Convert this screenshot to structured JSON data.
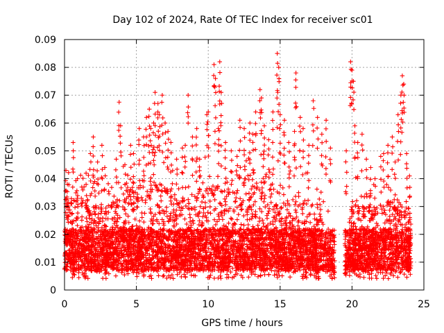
{
  "chart_data": {
    "type": "scatter",
    "title": "Day 102 of 2024, Rate Of TEC Index for receiver sc01",
    "xlabel": "GPS time / hours",
    "ylabel": "ROTI / TECUs",
    "xlim": [
      0,
      25
    ],
    "ylim": [
      0,
      0.09
    ],
    "xticks": [
      0,
      5,
      10,
      15,
      20,
      25
    ],
    "yticks": [
      0,
      0.01,
      0.02,
      0.03,
      0.04,
      0.05,
      0.06,
      0.07,
      0.08,
      0.09
    ],
    "xtick_labels": [
      "0",
      "5",
      "10",
      "15",
      "20",
      "25"
    ],
    "ytick_labels": [
      "0",
      "0.01",
      "0.02",
      "0.03",
      "0.04",
      "0.05",
      "0.06",
      "0.07",
      "0.08",
      "0.09"
    ],
    "grid": true,
    "marker": "+",
    "color": "#ff0000",
    "data_gap_hours": [
      18.8,
      19.5
    ],
    "series": [
      {
        "name": "sc01",
        "points": [
          [
            0.1,
            0.043
          ],
          [
            0.2,
            0.038
          ],
          [
            0.5,
            0.031
          ],
          [
            0.6,
            0.053
          ],
          [
            0.9,
            0.04
          ],
          [
            1.2,
            0.037
          ],
          [
            1.5,
            0.042
          ],
          [
            1.8,
            0.049
          ],
          [
            2.0,
            0.055
          ],
          [
            2.1,
            0.039
          ],
          [
            2.3,
            0.046
          ],
          [
            2.6,
            0.052
          ],
          [
            2.8,
            0.044
          ],
          [
            3.3,
            0.03
          ],
          [
            3.6,
            0.047
          ],
          [
            3.8,
            0.0675
          ],
          [
            3.9,
            0.059
          ],
          [
            4.2,
            0.045
          ],
          [
            4.6,
            0.052
          ],
          [
            4.8,
            0.049
          ],
          [
            5.2,
            0.058
          ],
          [
            5.5,
            0.055
          ],
          [
            5.7,
            0.062
          ],
          [
            5.9,
            0.065
          ],
          [
            6.0,
            0.058
          ],
          [
            6.2,
            0.06
          ],
          [
            6.3,
            0.071
          ],
          [
            6.5,
            0.067
          ],
          [
            6.6,
            0.063
          ],
          [
            6.8,
            0.07
          ],
          [
            7.0,
            0.06
          ],
          [
            7.2,
            0.057
          ],
          [
            7.4,
            0.053
          ],
          [
            7.8,
            0.047
          ],
          [
            8.2,
            0.051
          ],
          [
            8.4,
            0.052
          ],
          [
            8.6,
            0.07
          ],
          [
            8.9,
            0.055
          ],
          [
            9.2,
            0.058
          ],
          [
            9.4,
            0.047
          ],
          [
            9.9,
            0.063
          ],
          [
            10.0,
            0.064
          ],
          [
            10.4,
            0.081
          ],
          [
            10.5,
            0.076
          ],
          [
            10.7,
            0.058
          ],
          [
            10.8,
            0.082
          ],
          [
            10.9,
            0.071
          ],
          [
            11.2,
            0.053
          ],
          [
            11.6,
            0.05
          ],
          [
            12.0,
            0.048
          ],
          [
            12.2,
            0.061
          ],
          [
            12.5,
            0.058
          ],
          [
            12.9,
            0.06
          ],
          [
            13.1,
            0.056
          ],
          [
            13.3,
            0.064
          ],
          [
            13.6,
            0.072
          ],
          [
            13.7,
            0.069
          ],
          [
            13.9,
            0.059
          ],
          [
            14.2,
            0.054
          ],
          [
            14.5,
            0.064
          ],
          [
            14.8,
            0.085
          ],
          [
            14.9,
            0.08
          ],
          [
            15.0,
            0.063
          ],
          [
            15.3,
            0.061
          ],
          [
            15.6,
            0.053
          ],
          [
            16.0,
            0.057
          ],
          [
            16.1,
            0.078
          ],
          [
            16.4,
            0.062
          ],
          [
            16.6,
            0.058
          ],
          [
            17.0,
            0.052
          ],
          [
            17.3,
            0.068
          ],
          [
            17.6,
            0.062
          ],
          [
            17.9,
            0.056
          ],
          [
            18.2,
            0.061
          ],
          [
            18.5,
            0.051
          ],
          [
            19.6,
            0.05
          ],
          [
            19.9,
            0.082
          ],
          [
            20.0,
            0.079
          ],
          [
            20.1,
            0.075
          ],
          [
            20.2,
            0.059
          ],
          [
            20.4,
            0.053
          ],
          [
            20.7,
            0.056
          ],
          [
            21.0,
            0.047
          ],
          [
            21.3,
            0.044
          ],
          [
            21.6,
            0.04
          ],
          [
            22.0,
            0.048
          ],
          [
            22.2,
            0.049
          ],
          [
            22.5,
            0.052
          ],
          [
            22.8,
            0.055
          ],
          [
            23.0,
            0.046
          ],
          [
            23.2,
            0.063
          ],
          [
            23.4,
            0.07
          ],
          [
            23.5,
            0.077
          ],
          [
            23.6,
            0.074
          ],
          [
            23.8,
            0.049
          ],
          [
            24.0,
            0.041
          ]
        ],
        "hourly_typical_max": [
          0.033,
          0.034,
          0.032,
          0.03,
          0.035,
          0.038,
          0.04,
          0.038,
          0.033,
          0.035,
          0.04,
          0.036,
          0.037,
          0.044,
          0.042,
          0.036,
          0.034,
          0.033,
          0.031,
          0,
          0.032,
          0.03,
          0.031,
          0.033,
          0.03
        ],
        "typical_min": 0.004,
        "dense_band": [
          0.007,
          0.022
        ]
      }
    ]
  }
}
